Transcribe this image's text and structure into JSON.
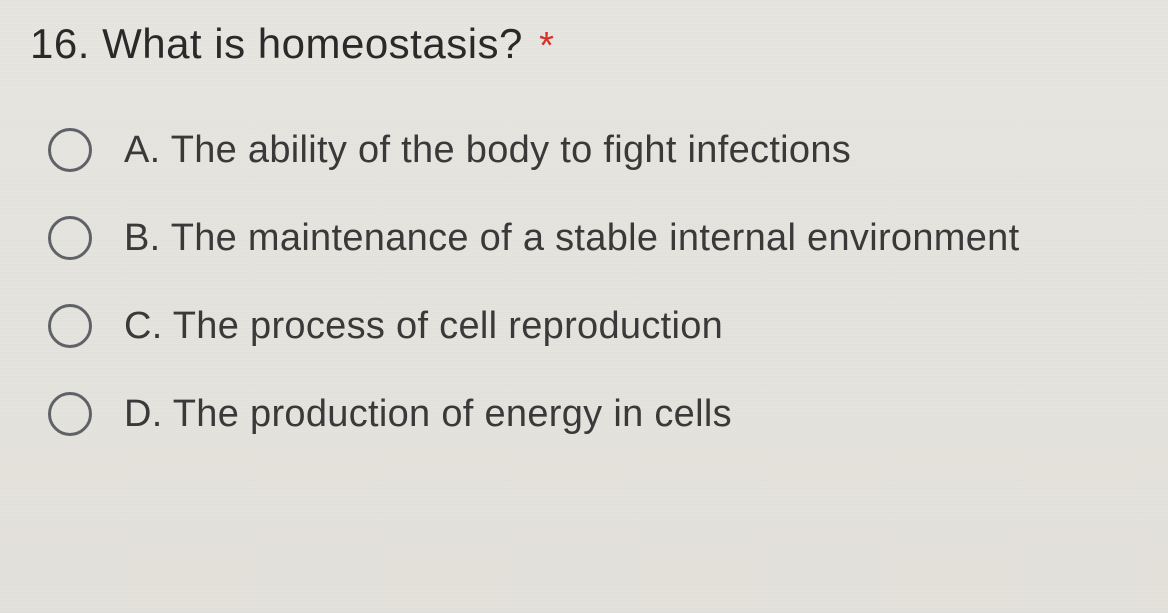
{
  "question": {
    "number": "16.",
    "text": "What is homeostasis?",
    "required": true,
    "asterisk": "*"
  },
  "options": [
    {
      "letter": "A.",
      "text": "The ability of the body to fight infections",
      "selected": false
    },
    {
      "letter": "B.",
      "text": "The maintenance of a stable internal environment",
      "selected": false
    },
    {
      "letter": "C.",
      "text": "The process of cell reproduction",
      "selected": false
    },
    {
      "letter": "D.",
      "text": "The production of energy in cells",
      "selected": false
    }
  ],
  "styling": {
    "background_color": "#e8e6e0",
    "question_text_color": "#2a2a2a",
    "option_text_color": "#3a3a3a",
    "radio_border_color": "#5f6368",
    "asterisk_color": "#d93025",
    "question_fontsize": 42,
    "option_fontsize": 38,
    "radio_diameter": 44,
    "radio_border_width": 3,
    "option_gap": 44
  }
}
